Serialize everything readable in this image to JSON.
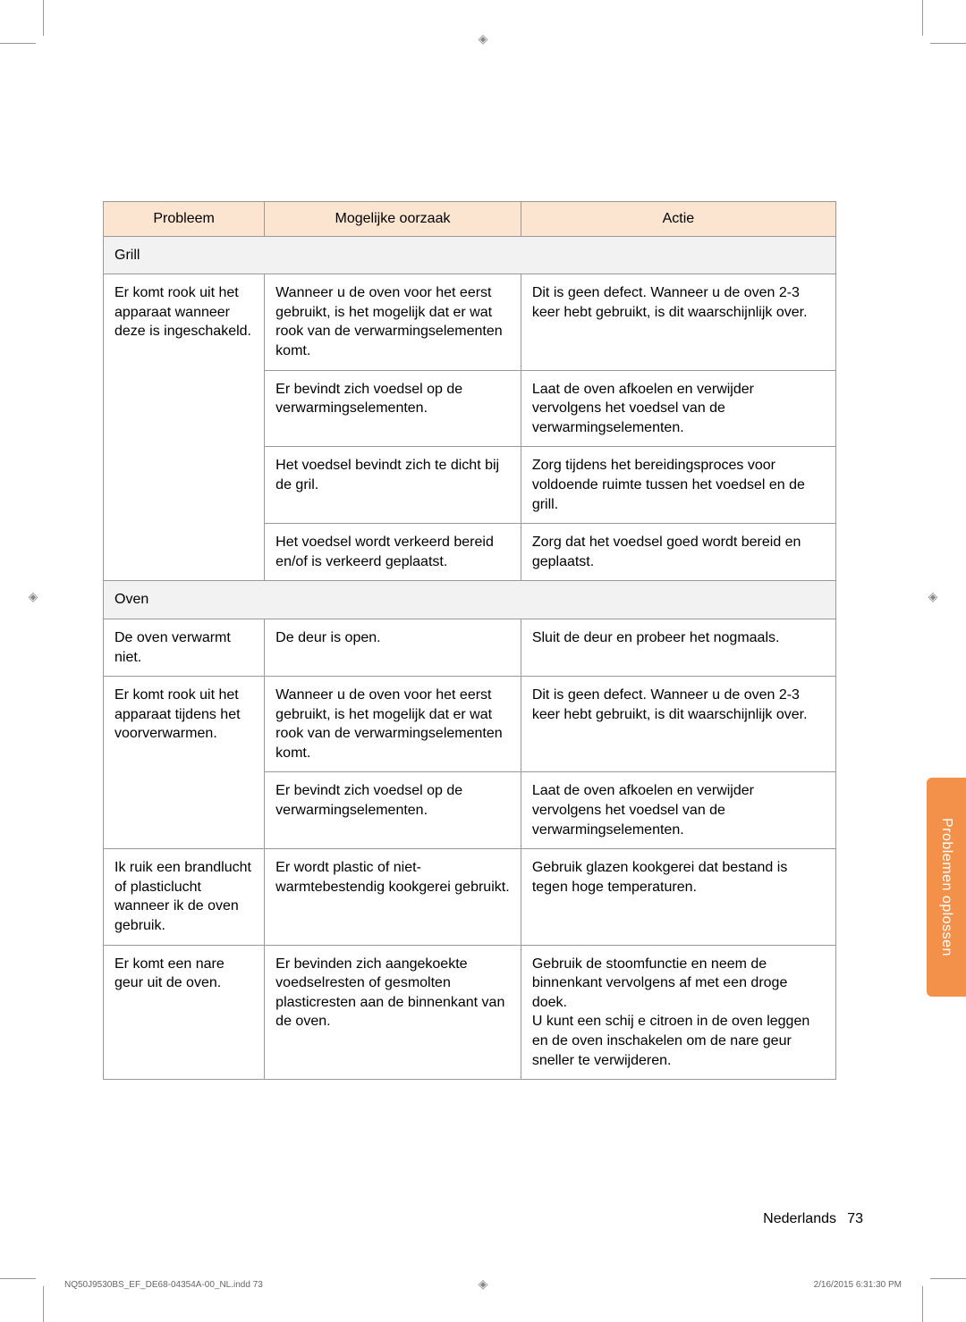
{
  "header": {
    "cols": [
      "Probleem",
      "Mogelijke oorzaak",
      "Actie"
    ]
  },
  "sections": [
    {
      "title": "Grill",
      "rows": [
        {
          "problem": "Er komt rook uit het apparaat wanneer deze is ingeschakeld.",
          "problem_span": 4,
          "cause": "Wanneer u de oven voor het eerst gebruikt, is het mogelijk dat er wat rook van de verwarmingselementen komt.",
          "action": "Dit is geen defect. Wanneer u de oven 2-3 keer hebt gebruikt, is dit waarschijnlijk over."
        },
        {
          "cause": "Er bevindt zich voedsel op de verwarmingselementen.",
          "action": "Laat de oven afkoelen en verwijder vervolgens het voedsel van de verwarmingselementen."
        },
        {
          "cause": "Het voedsel bevindt zich te dicht bij de gril.",
          "action": "Zorg tijdens het bereidingsproces voor voldoende ruimte tussen het voedsel en de grill."
        },
        {
          "cause": "Het voedsel wordt verkeerd bereid en/of is verkeerd geplaatst.",
          "action": "Zorg dat het voedsel goed wordt bereid en geplaatst."
        }
      ]
    },
    {
      "title": "Oven",
      "rows": [
        {
          "problem": "De oven verwarmt niet.",
          "problem_span": 1,
          "cause": "De deur is open.",
          "action": "Sluit de deur en probeer het nogmaals."
        },
        {
          "problem": "Er komt rook uit het apparaat tijdens het voorverwarmen.",
          "problem_span": 2,
          "cause": "Wanneer u de oven voor het eerst gebruikt, is het mogelijk dat er wat rook van de verwarmingselementen komt.",
          "action": "Dit is geen defect. Wanneer u de oven 2-3 keer hebt gebruikt, is dit waarschijnlijk over."
        },
        {
          "cause": "Er bevindt zich voedsel op de verwarmingselementen.",
          "action": "Laat de oven afkoelen en verwijder vervolgens het voedsel van de verwarmingselementen."
        },
        {
          "problem": "Ik ruik een brandlucht of plasticlucht wanneer ik de oven gebruik.",
          "problem_span": 1,
          "cause": "Er wordt plastic of niet-warmtebestendig kookgerei gebruikt.",
          "action": "Gebruik glazen kookgerei dat bestand is tegen hoge temperaturen."
        },
        {
          "problem": "Er komt een nare geur uit de oven.",
          "problem_span": 1,
          "cause": "Er bevinden zich aangekoekte voedselresten of gesmolten plasticresten aan de binnenkant van de oven.",
          "action": "Gebruik de stoomfunctie en neem de binnenkant vervolgens af met een droge doek.\nU kunt een schij e citroen in de oven leggen en de oven inschakelen om de nare geur sneller te verwijderen."
        }
      ]
    }
  ],
  "sideTab": "Problemen oplossen",
  "footer": {
    "language": "Nederlands",
    "page": "73",
    "filename": "NQ50J9530BS_EF_DE68-04354A-00_NL.indd   73",
    "datetime": "2/16/2015   6:31:30 PM"
  },
  "style": {
    "header_bg": "#fbe4d0",
    "section_bg": "#f2f2f2",
    "border_color": "#999999",
    "tab_bg": "#f3914b",
    "tab_text": "#ffffff",
    "body_font_size": 16
  }
}
